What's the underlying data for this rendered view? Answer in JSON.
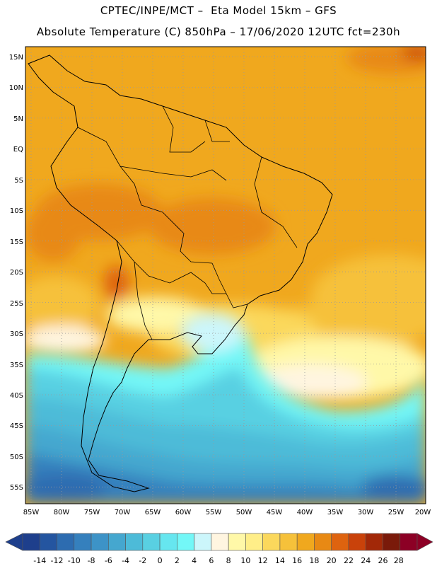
{
  "header": {
    "line1": "CPTEC/INPE/MCT –  Eta Model 15km – GFS",
    "line2": "Absolute Temperature (C) 850hPa – 17/06/2020 12UTC fct=230h"
  },
  "map": {
    "lat_labels": [
      "15N",
      "10N",
      "5N",
      "EQ",
      "5S",
      "10S",
      "15S",
      "20S",
      "25S",
      "30S",
      "35S",
      "40S",
      "45S",
      "50S",
      "55S"
    ],
    "lon_labels": [
      "85W",
      "80W",
      "75W",
      "70W",
      "65W",
      "60W",
      "55W",
      "50W",
      "45W",
      "40W",
      "35W",
      "30W",
      "25W",
      "20W"
    ],
    "grid": "dotted",
    "region": "South America"
  },
  "colorbar": {
    "labels": [
      "-14",
      "-12",
      "-10",
      "-8",
      "-6",
      "-4",
      "-2",
      "0",
      "2",
      "4",
      "6",
      "8",
      "10",
      "12",
      "14",
      "16",
      "18",
      "20",
      "22",
      "24",
      "26",
      "28"
    ],
    "colors": [
      "#1e3f8c",
      "#2455a0",
      "#2d6cb0",
      "#3580bd",
      "#3d93c7",
      "#45a7cf",
      "#4dbbd8",
      "#59d0e2",
      "#66e6ef",
      "#73f7f7",
      "#ccf6fb",
      "#fff5e0",
      "#fff8a8",
      "#ffee88",
      "#fbd85c",
      "#f6c13a",
      "#f0a81e",
      "#e88914",
      "#de630f",
      "#c9420a",
      "#a22808",
      "#7a1a0a",
      "#8c0025"
    ]
  }
}
